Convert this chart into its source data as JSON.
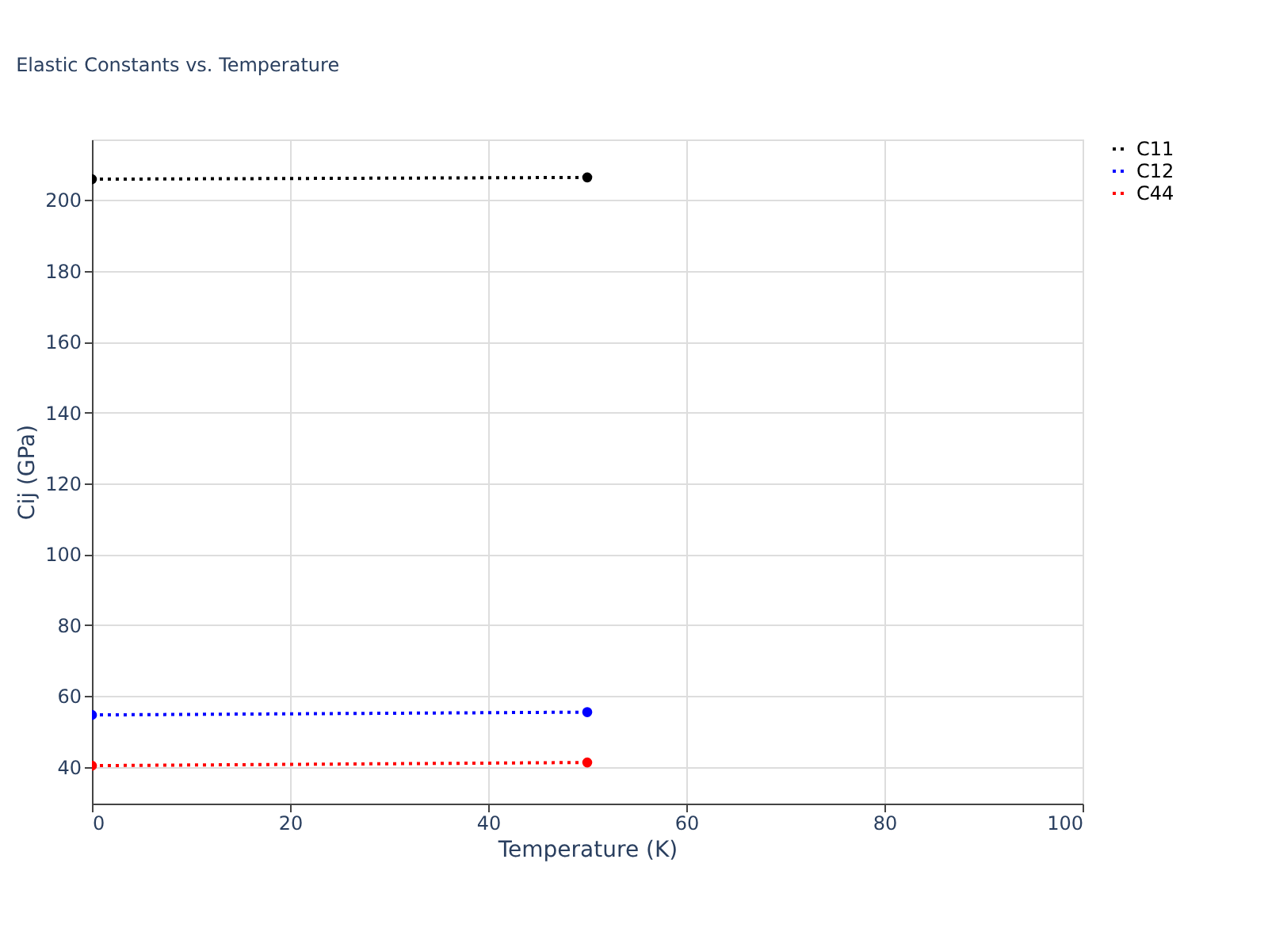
{
  "chart_data": {
    "type": "line",
    "title": "Elastic Constants vs. Temperature",
    "xlabel": "Temperature (K)",
    "ylabel": "Cij (GPa)",
    "x": [
      0,
      50
    ],
    "series": [
      {
        "name": "C11",
        "color": "#000000",
        "values": [
          205.8,
          206.3
        ]
      },
      {
        "name": "C12",
        "color": "#0000ff",
        "values": [
          54.7,
          55.5
        ]
      },
      {
        "name": "C44",
        "color": "#ff0000",
        "values": [
          40.4,
          41.3
        ]
      }
    ],
    "xlim": [
      0,
      100
    ],
    "xticks": [
      0,
      20,
      40,
      60,
      80,
      100
    ],
    "ylim": [
      29.7,
      217
    ],
    "yticks": [
      40,
      60,
      80,
      100,
      120,
      140,
      160,
      180,
      200
    ],
    "grid": true,
    "legend": "top right",
    "marker": "circle",
    "line_style": "dotted"
  }
}
